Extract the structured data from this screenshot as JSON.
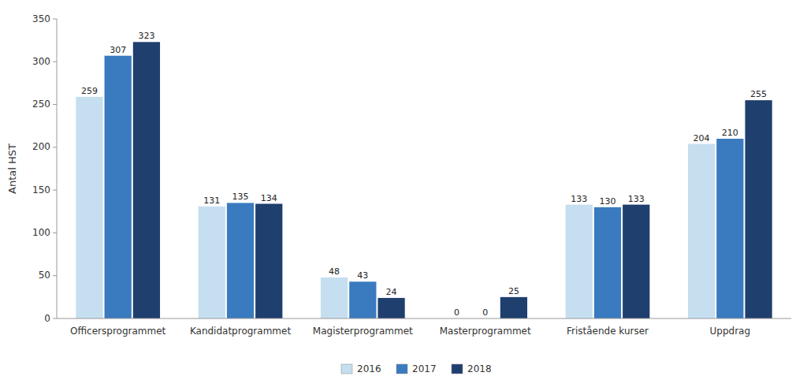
{
  "chart_data": {
    "type": "bar",
    "categories": [
      "Officersprogrammet",
      "Kandidatprogrammet",
      "Magisterprogrammet",
      "Masterprogrammet",
      "Fristående kurser",
      "Uppdrag"
    ],
    "series": [
      {
        "name": "2016",
        "color": "#c5dff0",
        "values": [
          259,
          131,
          48,
          0,
          133,
          204
        ]
      },
      {
        "name": "2017",
        "color": "#3a7bbf",
        "values": [
          307,
          135,
          43,
          0,
          130,
          210
        ]
      },
      {
        "name": "2018",
        "color": "#1f3f6e",
        "values": [
          323,
          134,
          24,
          25,
          133,
          255
        ]
      }
    ],
    "y_label": "Antal HST",
    "ylim": [
      0,
      350
    ],
    "yticks": [
      0,
      50,
      100,
      150,
      200,
      250,
      300,
      350
    ],
    "grid": false,
    "legend": "bottom",
    "data_labels": true
  }
}
